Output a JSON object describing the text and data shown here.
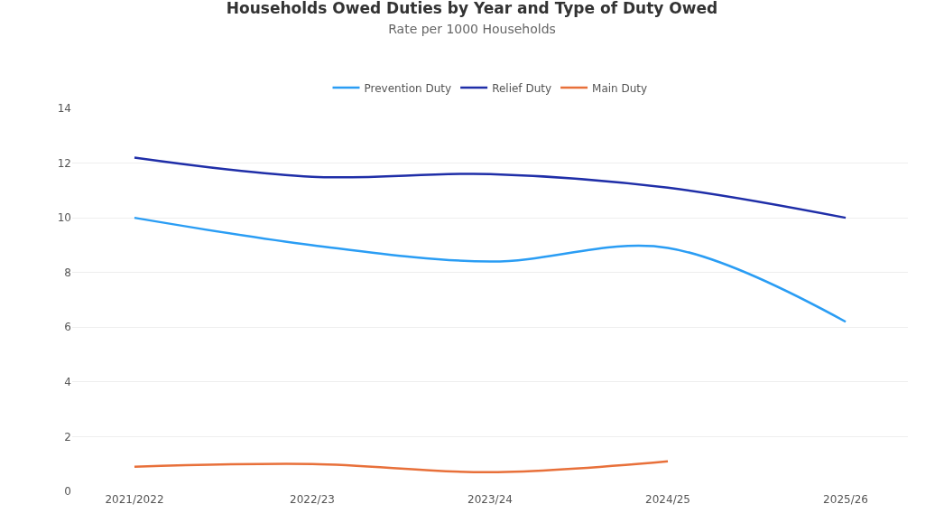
{
  "chart_data": {
    "type": "line",
    "title": "Households Owed Duties by Year and Type of Duty Owed",
    "subtitle": "Rate per 1000 Households",
    "categories": [
      "2021/2022",
      "2022/23",
      "2023/24",
      "2024/25",
      "2025/26"
    ],
    "series": [
      {
        "name": "Prevention Duty",
        "color": "#2a9df4",
        "values": [
          10.0,
          9.0,
          8.4,
          8.9,
          6.2
        ]
      },
      {
        "name": "Relief Duty",
        "color": "#1f2ea8",
        "values": [
          12.2,
          11.5,
          11.6,
          11.1,
          10.0
        ]
      },
      {
        "name": "Main Duty",
        "color": "#e8703a",
        "values": [
          0.9,
          1.0,
          0.7,
          1.1,
          null
        ]
      }
    ],
    "ylim": [
      0,
      14
    ],
    "yticks": [
      0,
      2,
      4,
      6,
      8,
      10,
      12,
      14
    ],
    "grid": "y",
    "legend": "top",
    "marker": "none",
    "line_style": "solid"
  }
}
